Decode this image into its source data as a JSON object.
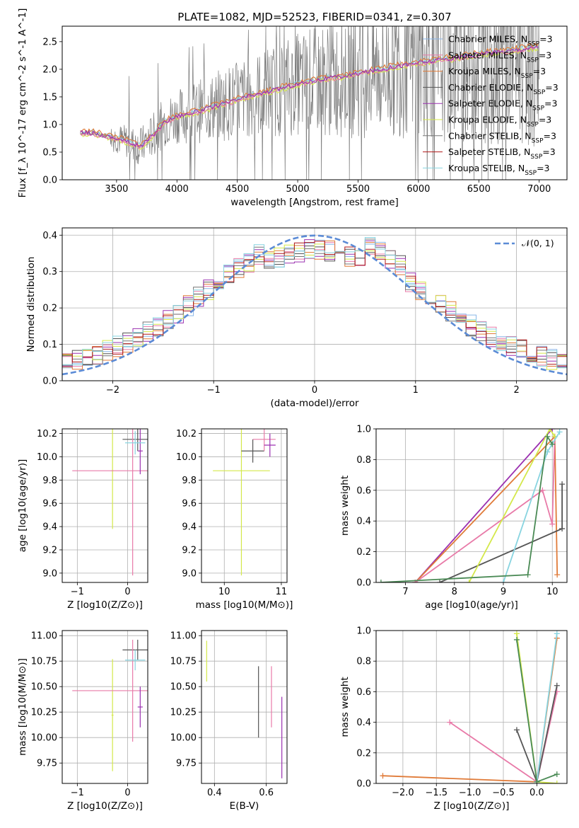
{
  "title": "PLATE=1082, MJD=52523, FIBERID=0341, z=0.307",
  "colors": {
    "chabrier_miles": "#8ab6e8",
    "salpeter_miles": "#e87aa8",
    "kroupa_miles": "#e07b39",
    "chabrier_elodie": "#555555",
    "salpeter_elodie": "#9b30b0",
    "kroupa_elodie": "#d4e84a",
    "chabrier_stelib": "#777777",
    "salpeter_stelib": "#b01818",
    "kroupa_stelib": "#88d4e0",
    "normal": "#5b8bd6"
  },
  "legend_spectrum": [
    "Chabrier MILES, N_SSP=3",
    "Salpeter MILES, N_SSP=3",
    "Kroupa MILES, N_SSP=3",
    "Chabrier ELODIE, N_SSP=3",
    "Salpeter ELODIE, N_SSP=3",
    "Kroupa ELODIE, N_SSP=3",
    "Chabrier STELIB, N_SSP=3",
    "Salpeter STELIB, N_SSP=3",
    "Kroupa STELIB, N_SSP=3"
  ],
  "legend_hist": "𝒩(0, 1)",
  "chart_data": [
    {
      "id": "spectrum",
      "type": "line",
      "xlabel": "wavelength [Angstrom, rest frame]",
      "ylabel": "Flux [f_λ 10^-17 erg cm^-2 s^-1 A^-1]",
      "xlim": [
        3050,
        7230
      ],
      "ylim": [
        0,
        2.78
      ],
      "xticks": [
        "3500",
        "4000",
        "4500",
        "5000",
        "5500",
        "6000",
        "6500",
        "7000"
      ],
      "yticks": [
        "0.0",
        "0.5",
        "1.0",
        "1.5",
        "2.0",
        "2.5"
      ],
      "continuum_x": [
        3200,
        3300,
        3400,
        3500,
        3600,
        3700,
        3800,
        3900,
        4000,
        4100,
        4200,
        4300,
        4400,
        4500,
        4600,
        4700,
        4800,
        4900,
        5000,
        5100,
        5200,
        5300,
        5400,
        5500,
        5600,
        5700,
        5800,
        5900,
        6000,
        6100,
        6200,
        6300,
        6400,
        6500,
        6600,
        6700,
        6800,
        6900,
        7000
      ],
      "continuum_y": [
        0.85,
        0.85,
        0.8,
        0.75,
        0.68,
        0.6,
        0.8,
        1.05,
        1.15,
        1.2,
        1.25,
        1.32,
        1.38,
        1.45,
        1.52,
        1.56,
        1.62,
        1.68,
        1.73,
        1.78,
        1.82,
        1.85,
        1.88,
        1.92,
        1.97,
        2.0,
        2.05,
        2.08,
        2.12,
        2.14,
        2.18,
        2.2,
        2.24,
        2.27,
        2.3,
        2.32,
        2.35,
        2.38,
        2.4
      ]
    },
    {
      "id": "residuals",
      "type": "line",
      "xlabel": "(data-model)/error",
      "ylabel": "Normed distribution",
      "xlim": [
        -2.5,
        2.5
      ],
      "ylim": [
        0,
        0.42
      ],
      "xticks": [
        "−2",
        "−1",
        "0",
        "1",
        "2"
      ],
      "yticks": [
        "0.0",
        "0.1",
        "0.2",
        "0.3",
        "0.4"
      ]
    },
    {
      "id": "age_vs_Z",
      "type": "scatter",
      "xlabel": "Z [log10(Z/Z⊙)]",
      "ylabel": "age  [log10(age/yr)]",
      "xlim": [
        -1.3,
        0.4
      ],
      "ylim": [
        8.92,
        10.24
      ],
      "xticks": [
        "−1",
        "0"
      ],
      "yticks": [
        "9.0",
        "9.2",
        "9.4",
        "9.6",
        "9.8",
        "10.0",
        "10.2"
      ],
      "points": [
        {
          "x": -0.3,
          "y": 9.88,
          "xe": 0.02,
          "ye": 0.5
        },
        {
          "x": 0.2,
          "y": 10.15,
          "xe": 0.3,
          "ye": 0.1
        },
        {
          "x": 0.1,
          "y": 9.88,
          "xe": 1.2,
          "ye": 0.9
        },
        {
          "x": 0.25,
          "y": 10.05,
          "xe": 0.05,
          "ye": 0.2
        },
        {
          "x": 0.15,
          "y": 10.12,
          "xe": 0.2,
          "ye": 0.1
        }
      ]
    },
    {
      "id": "age_vs_mass",
      "type": "scatter",
      "xlabel": "mass [log10(M/M⊙)]",
      "ylabel": "",
      "xlim": [
        9.6,
        11.1
      ],
      "ylim": [
        8.92,
        10.24
      ],
      "xticks": [
        "10",
        "11"
      ],
      "yticks": [
        "9.0",
        "9.2",
        "9.4",
        "9.6",
        "9.8",
        "10.0",
        "10.2"
      ],
      "points": [
        {
          "x": 10.3,
          "y": 9.88,
          "xe": 0.5,
          "ye": 0.9
        },
        {
          "x": 10.5,
          "y": 10.05,
          "xe": 0.2,
          "ye": 0.1
        },
        {
          "x": 10.7,
          "y": 10.15,
          "xe": 0.2,
          "ye": 0.1
        },
        {
          "x": 10.8,
          "y": 10.1,
          "xe": 0.1,
          "ye": 0.1
        }
      ]
    },
    {
      "id": "massweight_vs_age",
      "type": "line",
      "xlabel": "age  [log10(age/yr)]",
      "ylabel": "mass weight",
      "xlim": [
        6.4,
        10.3
      ],
      "ylim": [
        0,
        1
      ],
      "xticks": [
        "7",
        "8",
        "9",
        "10"
      ],
      "yticks": [
        "0.0",
        "0.2",
        "0.4",
        "0.6",
        "0.8",
        "1.0"
      ],
      "series": [
        {
          "name": "Salpeter ELODIE",
          "x": [
            7.2,
            10.0
          ],
          "y": [
            0.0,
            1.0
          ]
        },
        {
          "name": "Kroupa MILES",
          "x": [
            7.2,
            10.05,
            10.1
          ],
          "y": [
            0.0,
            0.95,
            0.05
          ]
        },
        {
          "name": "Chabrier ELODIE",
          "x": [
            7.7,
            10.2,
            10.2
          ],
          "y": [
            0.0,
            0.35,
            0.64
          ]
        },
        {
          "name": "Salpeter MILES",
          "x": [
            7.2,
            9.8,
            10.0,
            10.05
          ],
          "y": [
            0.0,
            0.6,
            0.38,
            0.95
          ]
        },
        {
          "name": "Kroupa ELODIE",
          "x": [
            8.3,
            9.95,
            10.05
          ],
          "y": [
            0.0,
            1.0,
            0.95
          ]
        },
        {
          "name": "Kroupa STELIB",
          "x": [
            9.0,
            9.9,
            10.15
          ],
          "y": [
            0.0,
            0.85,
            0.98
          ]
        },
        {
          "name": "Chabrier STELIB",
          "x": [
            6.5,
            9.5,
            9.9,
            10.0
          ],
          "y": [
            0.0,
            0.05,
            0.95,
            0.9
          ]
        }
      ]
    },
    {
      "id": "mass_vs_Z",
      "type": "scatter",
      "xlabel": "Z [log10(Z/Z⊙)]",
      "ylabel": "mass [log10(M/M⊙)]",
      "xlim": [
        -1.3,
        0.4
      ],
      "ylim": [
        9.55,
        11.05
      ],
      "xticks": [
        "−1",
        "0"
      ],
      "yticks": [
        "9.75",
        "10.00",
        "10.25",
        "10.50",
        "10.75",
        "11.00"
      ],
      "points": [
        {
          "x": -0.3,
          "y": 10.22,
          "xe": 0.02,
          "ye": 0.55
        },
        {
          "x": 0.2,
          "y": 10.86,
          "xe": 0.3,
          "ye": 0.1
        },
        {
          "x": 0.1,
          "y": 10.46,
          "xe": 1.2,
          "ye": 0.5
        },
        {
          "x": 0.25,
          "y": 10.3,
          "xe": 0.05,
          "ye": 0.2
        },
        {
          "x": 0.15,
          "y": 10.76,
          "xe": 0.2,
          "ye": 0.1
        }
      ]
    },
    {
      "id": "mass_vs_ebv",
      "type": "scatter",
      "xlabel": "E(B-V)",
      "ylabel": "",
      "xlim": [
        0.35,
        0.68
      ],
      "ylim": [
        9.55,
        11.05
      ],
      "xticks": [
        "0.4",
        "0.6"
      ],
      "yticks": [
        "9.75",
        "10.00",
        "10.25",
        "10.50",
        "10.75",
        "11.00"
      ],
      "points": [
        {
          "x": 0.37,
          "y": 10.75,
          "xe": 0,
          "ye": 0.2
        },
        {
          "x": 0.57,
          "y": 10.35,
          "xe": 0,
          "ye": 0.35
        },
        {
          "x": 0.62,
          "y": 10.4,
          "xe": 0,
          "ye": 0.3
        },
        {
          "x": 0.66,
          "y": 10.0,
          "xe": 0,
          "ye": 0.4
        }
      ]
    },
    {
      "id": "massweight_vs_Z",
      "type": "line",
      "xlabel": "Z [log10(Z/Z⊙)]",
      "ylabel": "mass weight",
      "xlim": [
        -2.4,
        0.45
      ],
      "ylim": [
        0,
        1
      ],
      "xticks": [
        "−2.0",
        "−1.5",
        "−1.0",
        "−0.5",
        "0.0"
      ],
      "yticks": [
        "0.0",
        "0.2",
        "0.4",
        "0.6",
        "0.8",
        "1.0"
      ],
      "series": [
        {
          "name": "Kroupa MILES",
          "x": [
            -2.3,
            0.0,
            0.3
          ],
          "y": [
            0.05,
            0.01,
            0.95
          ]
        },
        {
          "name": "Salpeter MILES",
          "x": [
            -1.3,
            0.0,
            0.3
          ],
          "y": [
            0.4,
            0.01,
            0.6
          ]
        },
        {
          "name": "Chabrier ELODIE",
          "x": [
            -0.3,
            0.0,
            0.3
          ],
          "y": [
            0.35,
            0.01,
            0.64
          ]
        },
        {
          "name": "Kroupa ELODIE",
          "x": [
            -0.3,
            0.0,
            0.3
          ],
          "y": [
            0.98,
            0.01,
            0.0
          ]
        },
        {
          "name": "Kroupa STELIB",
          "x": [
            0.0,
            0.3
          ],
          "y": [
            0.01,
            0.98
          ]
        },
        {
          "name": "Chabrier STELIB",
          "x": [
            -0.3,
            0.0,
            0.3
          ],
          "y": [
            0.94,
            0.01,
            0.06
          ]
        }
      ]
    }
  ]
}
